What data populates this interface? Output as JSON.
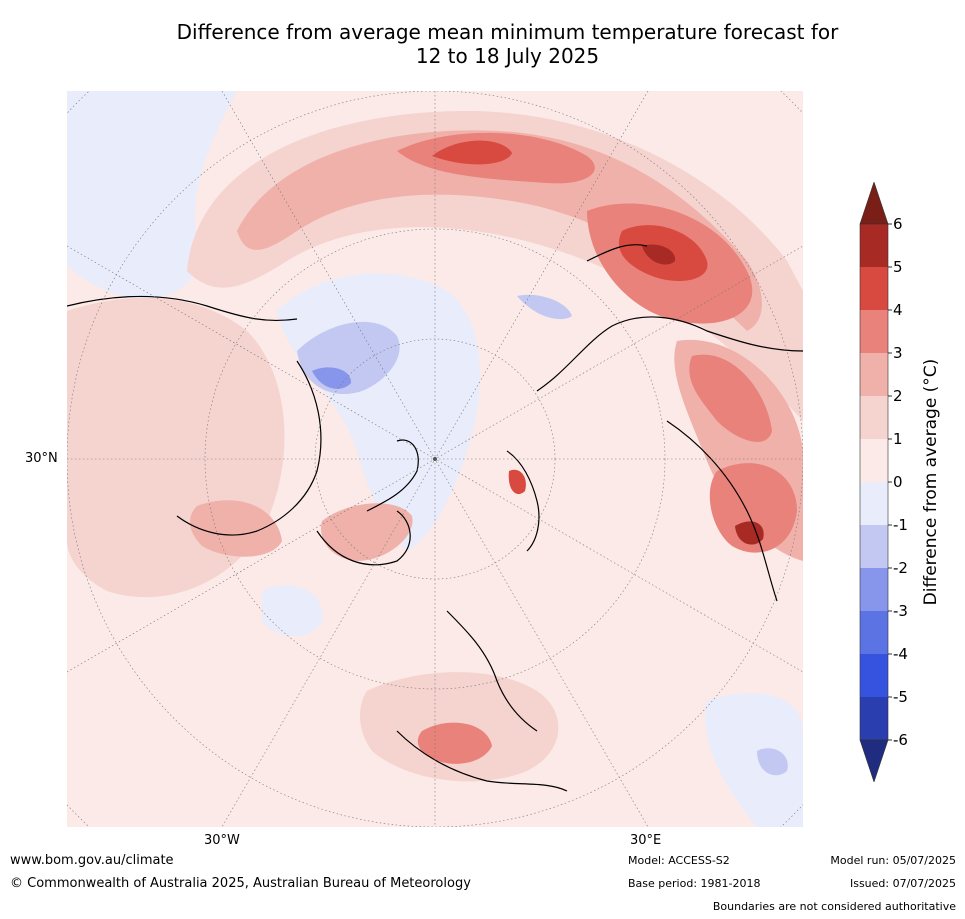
{
  "title": {
    "line1": "Difference from average mean minimum temperature forecast for",
    "line2": "12 to 18 July 2025"
  },
  "map_labels": {
    "lat_30n": "30°N",
    "lon_30w": "30°W",
    "lon_30e": "30°E"
  },
  "colorbar": {
    "label": "Difference from average (°C)",
    "ticks": [
      "6",
      "5",
      "4",
      "3",
      "2",
      "1",
      "0",
      "-1",
      "-2",
      "-3",
      "-4",
      "-5",
      "-6"
    ],
    "levels": [
      {
        "range": "5 to 6",
        "color": "#a82a24"
      },
      {
        "range": "4 to 5",
        "color": "#d84a3f"
      },
      {
        "range": "3 to 4",
        "color": "#e8827a"
      },
      {
        "range": "2 to 3",
        "color": "#efb1aa"
      },
      {
        "range": "1 to 2",
        "color": "#f5d3cf"
      },
      {
        "range": "0 to 1",
        "color": "#fbeae7"
      },
      {
        "range": "-1 to 0",
        "color": "#e9ecfb"
      },
      {
        "range": "-2 to -1",
        "color": "#c2c8f2"
      },
      {
        "range": "-3 to -2",
        "color": "#8796ea"
      },
      {
        "range": "-4 to -3",
        "color": "#5b73e3"
      },
      {
        "range": "-5 to -4",
        "color": "#3553df"
      },
      {
        "range": "-6 to -5",
        "color": "#2a3eb0"
      }
    ],
    "over_color": "#7a1e18",
    "under_color": "#1f2c80"
  },
  "footer": {
    "website": "www.bom.gov.au/climate",
    "copyright": "© Commonwealth of Australia 2025, Australian Bureau of Meteorology",
    "model": "Model: ACCESS-S2",
    "base_period": "Base period: 1981-2018",
    "model_run": "Model run: 05/07/2025",
    "issued": "Issued: 07/07/2025",
    "disclaimer": "Boundaries are not considered authoritative"
  }
}
